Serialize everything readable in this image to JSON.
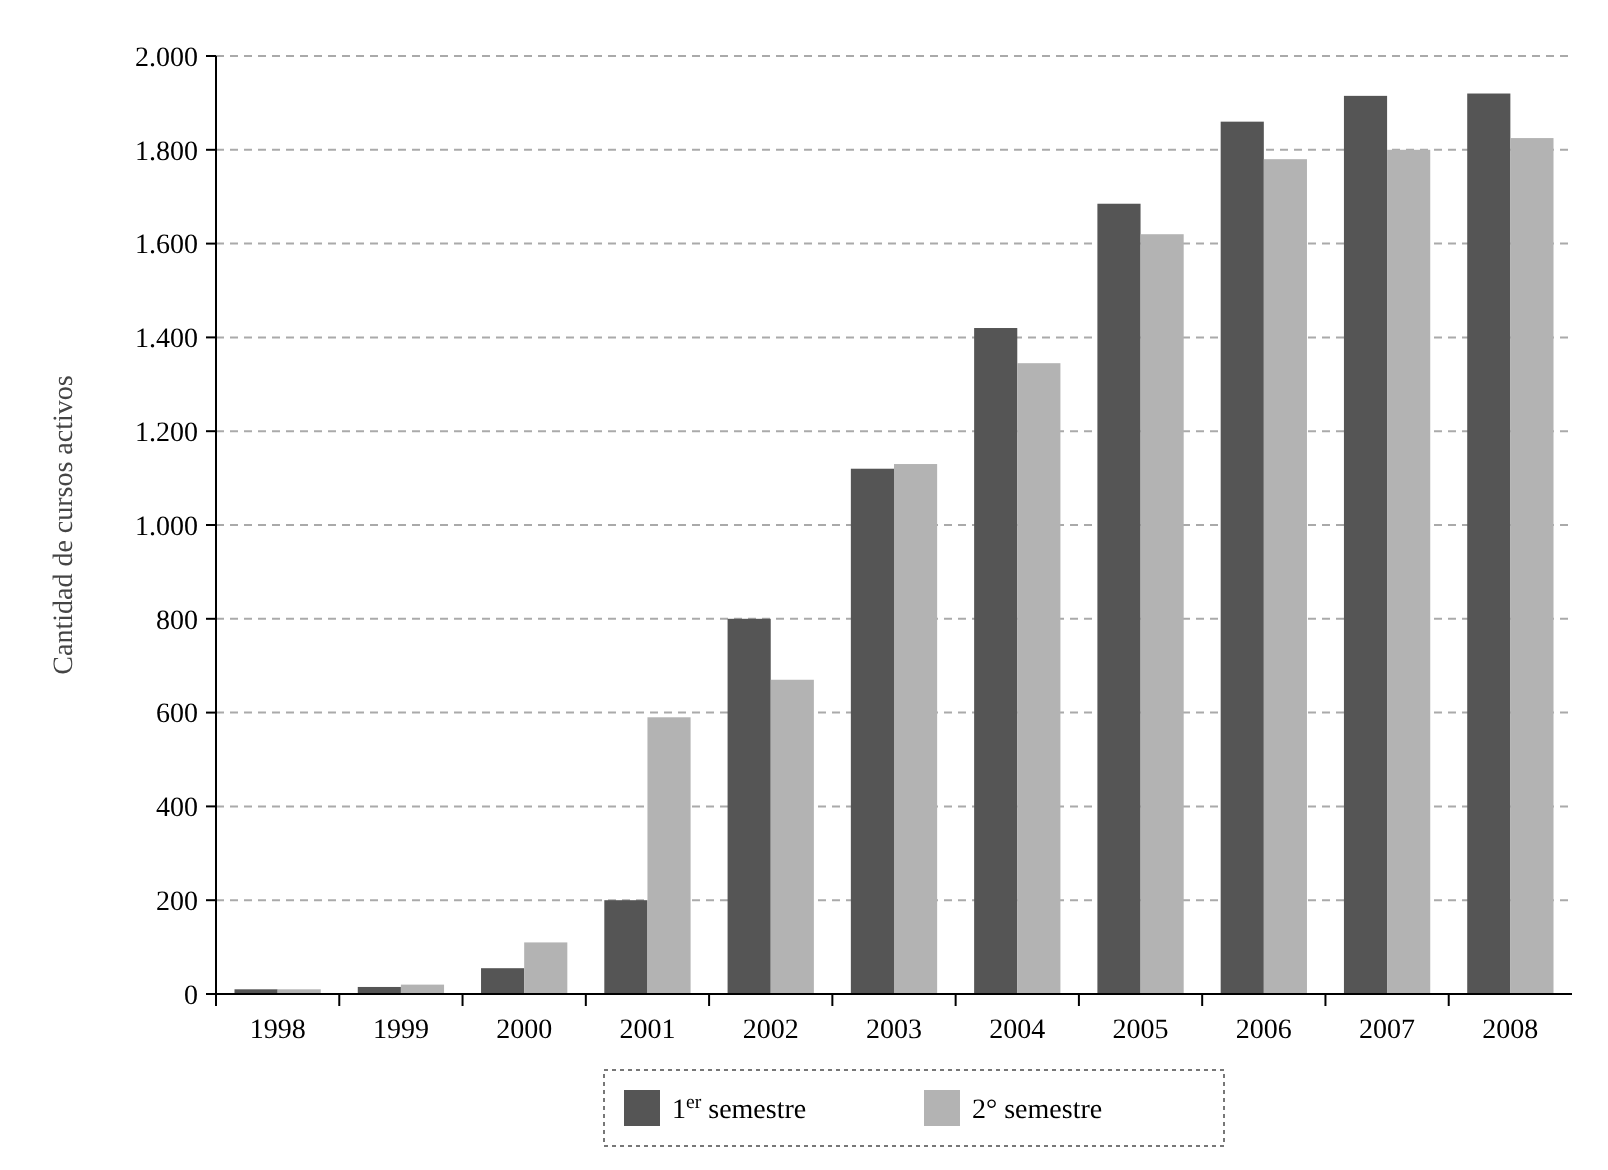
{
  "chart_data": {
    "type": "bar",
    "ylabel": "Cantidad de cursos activos",
    "categories": [
      "1998",
      "1999",
      "2000",
      "2001",
      "2002",
      "2003",
      "2004",
      "2005",
      "2006",
      "2007",
      "2008"
    ],
    "series": [
      {
        "name": "1$^{er}$ semestre",
        "color": "#555555",
        "values": [
          10,
          15,
          55,
          200,
          800,
          1120,
          1420,
          1685,
          1860,
          1915,
          1920
        ]
      },
      {
        "name": "2° semestre",
        "color": "#b3b3b3",
        "values": [
          10,
          20,
          110,
          590,
          670,
          1130,
          1345,
          1620,
          1780,
          1800,
          1825
        ]
      }
    ],
    "ylim": [
      0,
      2000
    ],
    "yticks": [
      0,
      {
        "value": 200,
        "label": "200"
      },
      {
        "value": 400,
        "label": "400"
      },
      {
        "value": 600,
        "label": "600"
      },
      {
        "value": 800,
        "label": "800"
      },
      {
        "value": 1000,
        "label": "1.000"
      },
      {
        "value": 1200,
        "label": "1.200"
      },
      {
        "value": 1400,
        "label": "1.400"
      },
      {
        "value": 1600,
        "label": "1.600"
      },
      {
        "value": 1800,
        "label": "1.800"
      },
      {
        "value": 2000,
        "label": "2.000"
      }
    ],
    "grid": "y",
    "line_style": "dashed",
    "legend": "bottom"
  }
}
